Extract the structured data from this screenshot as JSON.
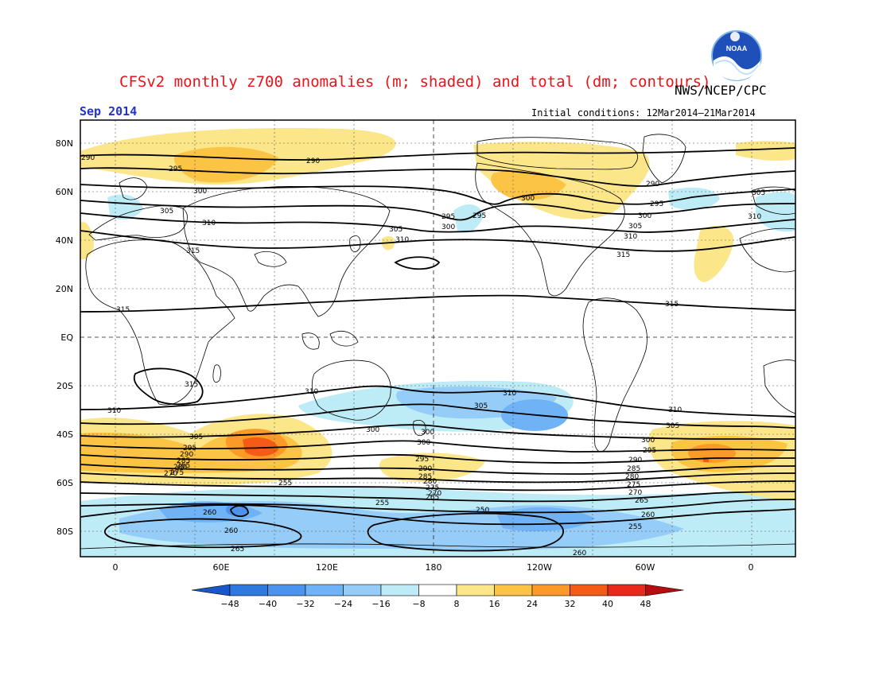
{
  "header": {
    "title": "CFSv2 monthly z700 anomalies (m; shaded) and total (dm; contours)",
    "agency": "NWS/NCEP/CPC",
    "period": "Sep 2014",
    "initial_conditions": "Initial conditions: 12Mar2014–21Mar2014",
    "logo_text": "NOAA"
  },
  "map": {
    "lat_ticks": [
      "80N",
      "60N",
      "40N",
      "20N",
      "EQ",
      "20S",
      "40S",
      "60S",
      "80S"
    ],
    "lon_ticks": [
      "0",
      "60E",
      "120E",
      "180",
      "120W",
      "60W",
      "0"
    ]
  },
  "contour_labels": {
    "levels": [
      "250",
      "255",
      "260",
      "265",
      "270",
      "275",
      "280",
      "285",
      "290",
      "295",
      "300",
      "305",
      "310",
      "315"
    ],
    "north": [
      "290",
      "295",
      "300",
      "305",
      "310",
      "315",
      "290",
      "295",
      "300",
      "305",
      "310",
      "315",
      "295",
      "300",
      "305",
      "310",
      "290",
      "295",
      "300",
      "305",
      "310",
      "315"
    ],
    "south": [
      "310",
      "315",
      "310",
      "305",
      "300",
      "295",
      "290",
      "285",
      "280",
      "275",
      "270",
      "265",
      "260",
      "255",
      "250",
      "255",
      "260",
      "310",
      "305",
      "300",
      "295",
      "290",
      "285",
      "280",
      "275",
      "270",
      "265",
      "260",
      "255",
      "250",
      "260",
      "255",
      "310",
      "305",
      "300",
      "295",
      "290",
      "285",
      "280",
      "275",
      "270",
      "265",
      "260",
      "255"
    ]
  },
  "colorbar": {
    "ticks": [
      "−48",
      "−40",
      "−32",
      "−24",
      "−16",
      "−8",
      "8",
      "16",
      "24",
      "32",
      "40",
      "48"
    ],
    "colors": [
      "#1a57c9",
      "#2e78e0",
      "#4b93ec",
      "#6fb2f5",
      "#95cdf8",
      "#bdebf6",
      "#ffffff",
      "#fce68a",
      "#fcc445",
      "#fb9a26",
      "#f55a16",
      "#e8291b",
      "#b50d11"
    ],
    "low_arrow_color": "#1a57c9",
    "high_arrow_color": "#b50d11"
  },
  "colors": {
    "coast": "#000000",
    "contour": "#000000",
    "grid": "#555555"
  }
}
